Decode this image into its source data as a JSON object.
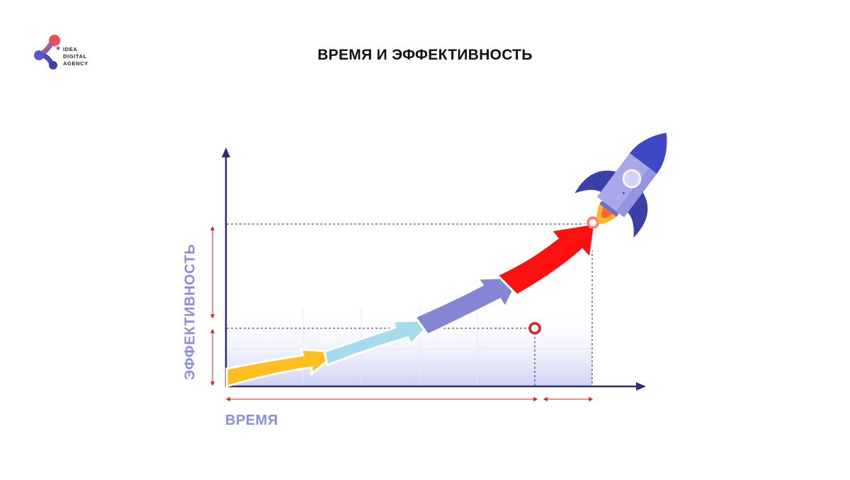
{
  "brand": {
    "logo_lines": [
      "IDEA",
      "DIGITAL",
      "AGENCY"
    ]
  },
  "title": "ВРЕМЯ И ЭФФЕКТИВНОСТЬ",
  "axes": {
    "y_label": "ЭФФЕКТИВНОСТЬ",
    "x_label": "ВРЕМЯ"
  },
  "colors": {
    "axis": "#2a2a78",
    "arrow_yellow": "#ffbf1f",
    "arrow_cyan": "#a6dbee",
    "arrow_purple": "#8585d6",
    "arrow_red": "#ff1010",
    "label": "#8a8de0",
    "dimension": "#e81b1b",
    "rocket_body": "#a8a8ea",
    "rocket_dark": "#4048c8"
  },
  "icons": {
    "logo": "molecule-logo-icon",
    "rocket": "rocket-icon"
  }
}
